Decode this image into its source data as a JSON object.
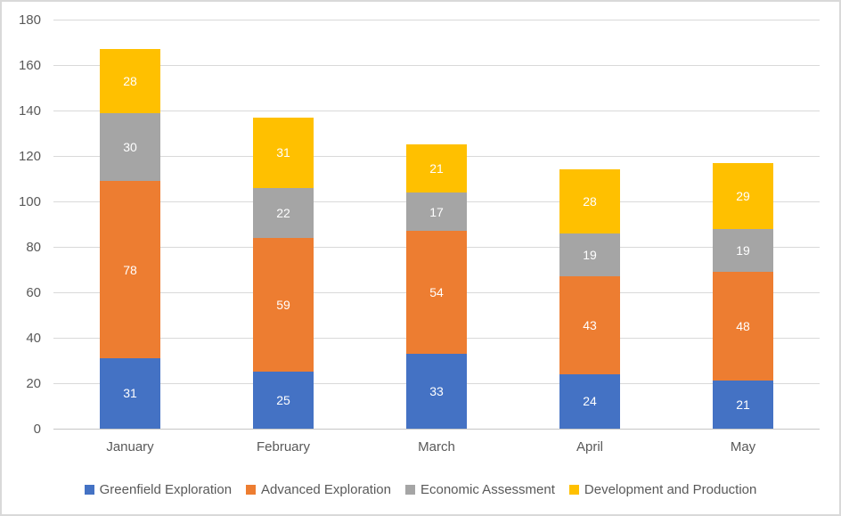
{
  "chart_data": {
    "type": "bar",
    "stacked": true,
    "title": "",
    "xlabel": "",
    "ylabel": "",
    "categories": [
      "January",
      "February",
      "March",
      "April",
      "May"
    ],
    "series": [
      {
        "name": "Greenfield Exploration",
        "color": "#4472C4",
        "values": [
          31,
          25,
          33,
          24,
          21
        ]
      },
      {
        "name": "Advanced Exploration",
        "color": "#ED7D31",
        "values": [
          78,
          59,
          54,
          43,
          48
        ]
      },
      {
        "name": "Economic Assessment",
        "color": "#A5A5A5",
        "values": [
          30,
          22,
          17,
          19,
          19
        ]
      },
      {
        "name": "Development and Production",
        "color": "#FFC000",
        "values": [
          28,
          31,
          21,
          28,
          29
        ]
      }
    ],
    "totals": [
      167,
      137,
      125,
      114,
      117
    ],
    "ylim": [
      0,
      180
    ],
    "ytick_step": 20,
    "ytick_labels": [
      "0",
      "20",
      "40",
      "60",
      "80",
      "100",
      "120",
      "140",
      "160",
      "180"
    ],
    "grid": true,
    "data_labels": true,
    "data_label_color": "#FFFFFF",
    "axis_text_color": "#595959",
    "gridline_color": "#D9D9D9",
    "legend_position": "bottom"
  }
}
